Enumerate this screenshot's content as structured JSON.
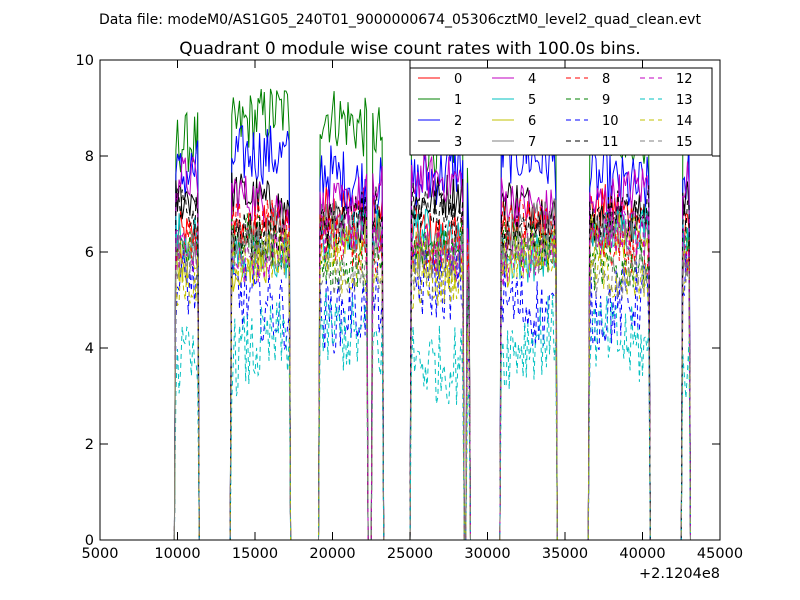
{
  "chart_data": {
    "type": "line",
    "suptitle": "Data file: modeM0/AS1G05_240T01_9000000674_05306cztM0_level2_quad_clean.evt",
    "title": "Quadrant 0 module wise count rates with 100.0s bins.",
    "xlabel": "",
    "ylabel": "",
    "xlim": [
      5000,
      45000
    ],
    "ylim": [
      0,
      10
    ],
    "x_offset_label": "+2.1204e8",
    "xticks": [
      5000,
      10000,
      15000,
      20000,
      25000,
      30000,
      35000,
      40000,
      45000
    ],
    "yticks": [
      0,
      2,
      4,
      6,
      8,
      10
    ],
    "bin_seconds": 100,
    "good_time_intervals": [
      [
        9900,
        11300
      ],
      [
        13500,
        17200
      ],
      [
        19200,
        22200
      ],
      [
        22600,
        23200
      ],
      [
        25100,
        28400
      ],
      [
        28700,
        28800
      ],
      [
        30900,
        34400
      ],
      [
        36600,
        40400
      ],
      [
        42600,
        43000
      ]
    ],
    "legend": {
      "location": "upper right",
      "columns": 4
    },
    "series": [
      {
        "name": "0",
        "color": "#ff0000",
        "dashed": false,
        "mean_rate": 6.6
      },
      {
        "name": "1",
        "color": "#008000",
        "dashed": false,
        "mean_rate": 8.6
      },
      {
        "name": "2",
        "color": "#0000ff",
        "dashed": false,
        "mean_rate": 7.7
      },
      {
        "name": "3",
        "color": "#000000",
        "dashed": false,
        "mean_rate": 6.9
      },
      {
        "name": "4",
        "color": "#c000c0",
        "dashed": false,
        "mean_rate": 7.2
      },
      {
        "name": "5",
        "color": "#00c0c0",
        "dashed": false,
        "mean_rate": 6.2
      },
      {
        "name": "6",
        "color": "#c0c000",
        "dashed": false,
        "mean_rate": 6.0
      },
      {
        "name": "7",
        "color": "#808080",
        "dashed": false,
        "mean_rate": 6.3
      },
      {
        "name": "8",
        "color": "#ff0000",
        "dashed": true,
        "mean_rate": 6.3
      },
      {
        "name": "9",
        "color": "#008000",
        "dashed": true,
        "mean_rate": 6.0
      },
      {
        "name": "10",
        "color": "#0000ff",
        "dashed": true,
        "mean_rate": 5.0
      },
      {
        "name": "11",
        "color": "#000000",
        "dashed": true,
        "mean_rate": 6.6
      },
      {
        "name": "12",
        "color": "#c000c0",
        "dashed": true,
        "mean_rate": 6.1
      },
      {
        "name": "13",
        "color": "#00c0c0",
        "dashed": true,
        "mean_rate": 4.0
      },
      {
        "name": "14",
        "color": "#c0c000",
        "dashed": true,
        "mean_rate": 5.6
      },
      {
        "name": "15",
        "color": "#808080",
        "dashed": true,
        "mean_rate": 5.8
      }
    ]
  }
}
